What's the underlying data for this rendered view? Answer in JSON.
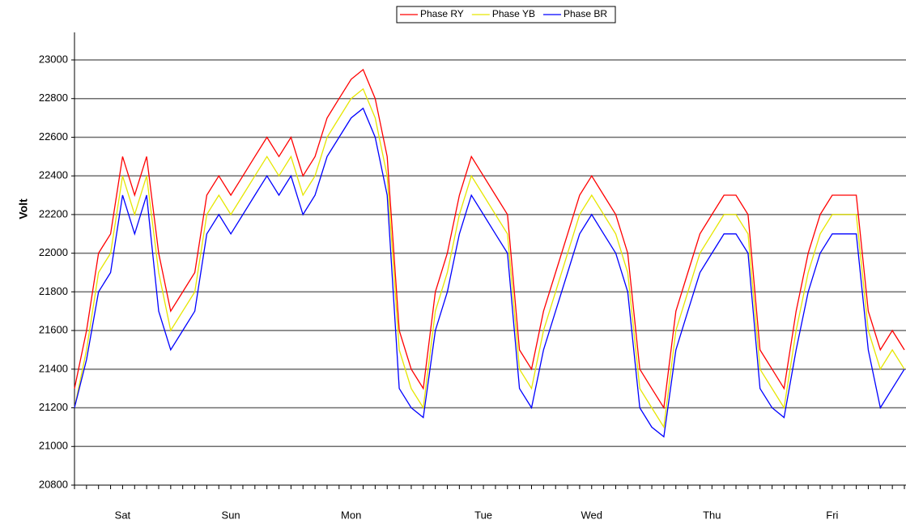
{
  "chart_data": {
    "type": "line",
    "y_label": "Volt",
    "legend": "top",
    "grid": true,
    "ylim": [
      20800,
      23000
    ],
    "yticks": [
      20800,
      21000,
      21200,
      21400,
      21600,
      21800,
      22000,
      22200,
      22400,
      22600,
      22800,
      23000
    ],
    "categories": [
      null,
      null,
      null,
      null,
      "Sat",
      null,
      null,
      null,
      null,
      null,
      null,
      null,
      null,
      "Sun",
      null,
      null,
      null,
      null,
      null,
      null,
      null,
      null,
      null,
      "Mon",
      null,
      null,
      null,
      null,
      null,
      null,
      null,
      null,
      null,
      null,
      "Tue",
      null,
      null,
      null,
      null,
      null,
      null,
      null,
      null,
      "Wed",
      null,
      null,
      null,
      null,
      null,
      null,
      null,
      null,
      null,
      "Thu",
      null,
      null,
      null,
      null,
      null,
      null,
      null,
      null,
      null,
      "Fri",
      null,
      null,
      null,
      null,
      null,
      null
    ],
    "series": [
      {
        "name": "Phase RY",
        "color": "#ff0000",
        "values": [
          21300,
          21600,
          22000,
          22100,
          22500,
          22300,
          22500,
          22000,
          21700,
          21800,
          21900,
          22300,
          22400,
          22300,
          22400,
          22500,
          22600,
          22500,
          22600,
          22400,
          22500,
          22700,
          22800,
          22900,
          22950,
          22800,
          22500,
          21600,
          21400,
          21300,
          21800,
          22000,
          22300,
          22500,
          22400,
          22300,
          22200,
          21500,
          21400,
          21700,
          21900,
          22100,
          22300,
          22400,
          22300,
          22200,
          22000,
          21400,
          21300,
          21200,
          21700,
          21900,
          22100,
          22200,
          22300,
          22300,
          22200,
          21500,
          21400,
          21300,
          21700,
          22000,
          22200,
          22300,
          22300,
          22300,
          21700,
          21500,
          21600,
          21500
        ]
      },
      {
        "name": "Phase YB",
        "color": "#e6e600",
        "values": [
          21200,
          21500,
          21900,
          22000,
          22400,
          22200,
          22400,
          21900,
          21600,
          21700,
          21800,
          22200,
          22300,
          22200,
          22300,
          22400,
          22500,
          22400,
          22500,
          22300,
          22400,
          22600,
          22700,
          22800,
          22850,
          22700,
          22400,
          21500,
          21300,
          21200,
          21700,
          21900,
          22200,
          22400,
          22300,
          22200,
          22100,
          21400,
          21300,
          21600,
          21800,
          22000,
          22200,
          22300,
          22200,
          22100,
          21900,
          21300,
          21200,
          21100,
          21600,
          21800,
          22000,
          22100,
          22200,
          22200,
          22100,
          21400,
          21300,
          21200,
          21600,
          21900,
          22100,
          22200,
          22200,
          22200,
          21600,
          21400,
          21500,
          21400
        ]
      },
      {
        "name": "Phase BR",
        "color": "#0000ff",
        "values": [
          21200,
          21450,
          21800,
          21900,
          22300,
          22100,
          22300,
          21700,
          21500,
          21600,
          21700,
          22100,
          22200,
          22100,
          22200,
          22300,
          22400,
          22300,
          22400,
          22200,
          22300,
          22500,
          22600,
          22700,
          22750,
          22600,
          22300,
          21300,
          21200,
          21150,
          21600,
          21800,
          22100,
          22300,
          22200,
          22100,
          22000,
          21300,
          21200,
          21500,
          21700,
          21900,
          22100,
          22200,
          22100,
          22000,
          21800,
          21200,
          21100,
          21050,
          21500,
          21700,
          21900,
          22000,
          22100,
          22100,
          22000,
          21300,
          21200,
          21150,
          21500,
          21800,
          22000,
          22100,
          22100,
          22100,
          21500,
          21200,
          21300,
          21400
        ]
      }
    ]
  }
}
